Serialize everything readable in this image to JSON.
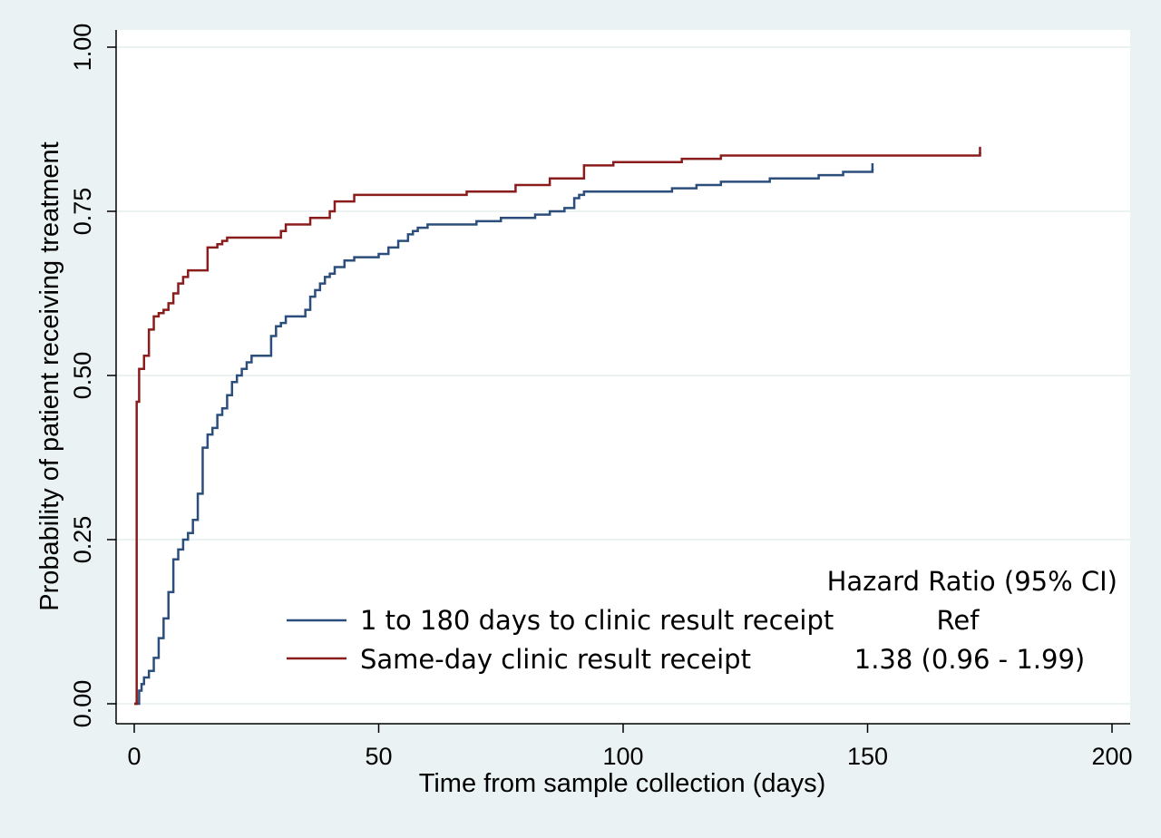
{
  "chart_data": {
    "type": "line",
    "xlabel": "Time from sample collection (days)",
    "ylabel": "Probability of patient receiving treatment",
    "xlim": [
      0,
      200
    ],
    "ylim": [
      0,
      1
    ],
    "x_ticks": [
      "0",
      "50",
      "100",
      "150",
      "200"
    ],
    "y_ticks": [
      "0.00",
      "0.25",
      "0.50",
      "0.75",
      "1.00"
    ],
    "grid": true,
    "legend_position": "bottom-right",
    "legend_header": "Hazard Ratio (95% CI)",
    "series": [
      {
        "name": "1 to 180 days to clinic result receipt",
        "hazard_ratio": "Ref",
        "color": "#2b4e7c",
        "x": [
          0,
          1,
          1.5,
          2,
          3,
          4,
          5,
          6,
          7,
          8,
          9,
          10,
          11,
          12,
          13,
          14,
          15,
          16,
          17,
          18,
          19,
          20,
          21,
          22,
          23,
          24,
          25,
          28,
          29,
          30,
          31,
          32,
          35,
          36,
          37,
          38,
          39,
          40,
          41,
          43,
          45,
          50,
          52,
          54,
          56,
          57,
          58,
          60,
          65,
          67,
          70,
          75,
          80,
          82,
          85,
          88,
          90,
          91,
          92,
          95,
          105,
          110,
          115,
          120,
          130,
          140,
          145,
          151
        ],
        "y": [
          0,
          0.02,
          0.03,
          0.04,
          0.05,
          0.07,
          0.1,
          0.13,
          0.17,
          0.22,
          0.235,
          0.25,
          0.26,
          0.28,
          0.32,
          0.39,
          0.41,
          0.42,
          0.44,
          0.45,
          0.47,
          0.49,
          0.5,
          0.51,
          0.52,
          0.53,
          0.53,
          0.56,
          0.575,
          0.58,
          0.59,
          0.59,
          0.6,
          0.62,
          0.63,
          0.64,
          0.65,
          0.655,
          0.665,
          0.675,
          0.68,
          0.685,
          0.695,
          0.705,
          0.715,
          0.72,
          0.725,
          0.73,
          0.73,
          0.73,
          0.735,
          0.74,
          0.74,
          0.745,
          0.75,
          0.755,
          0.77,
          0.775,
          0.78,
          0.78,
          0.78,
          0.785,
          0.79,
          0.795,
          0.8,
          0.805,
          0.81,
          0.815
        ]
      },
      {
        "name": "Same-day clinic result receipt",
        "hazard_ratio": "1.38 (0.96 - 1.99)",
        "color": "#8b1c1c",
        "x": [
          0,
          0.5,
          1,
          2,
          3,
          4,
          5,
          6,
          7,
          8,
          9,
          10,
          11,
          12,
          13,
          15,
          17,
          18,
          19,
          30,
          31,
          32,
          36,
          40,
          41,
          45,
          50,
          60,
          68,
          78,
          85,
          92,
          98,
          112,
          120,
          173
        ],
        "y": [
          0,
          0.46,
          0.51,
          0.53,
          0.57,
          0.59,
          0.595,
          0.6,
          0.61,
          0.625,
          0.64,
          0.65,
          0.66,
          0.66,
          0.66,
          0.695,
          0.7,
          0.705,
          0.71,
          0.72,
          0.73,
          0.73,
          0.74,
          0.75,
          0.765,
          0.775,
          0.775,
          0.775,
          0.78,
          0.79,
          0.8,
          0.82,
          0.825,
          0.83,
          0.835,
          0.84
        ]
      }
    ]
  }
}
